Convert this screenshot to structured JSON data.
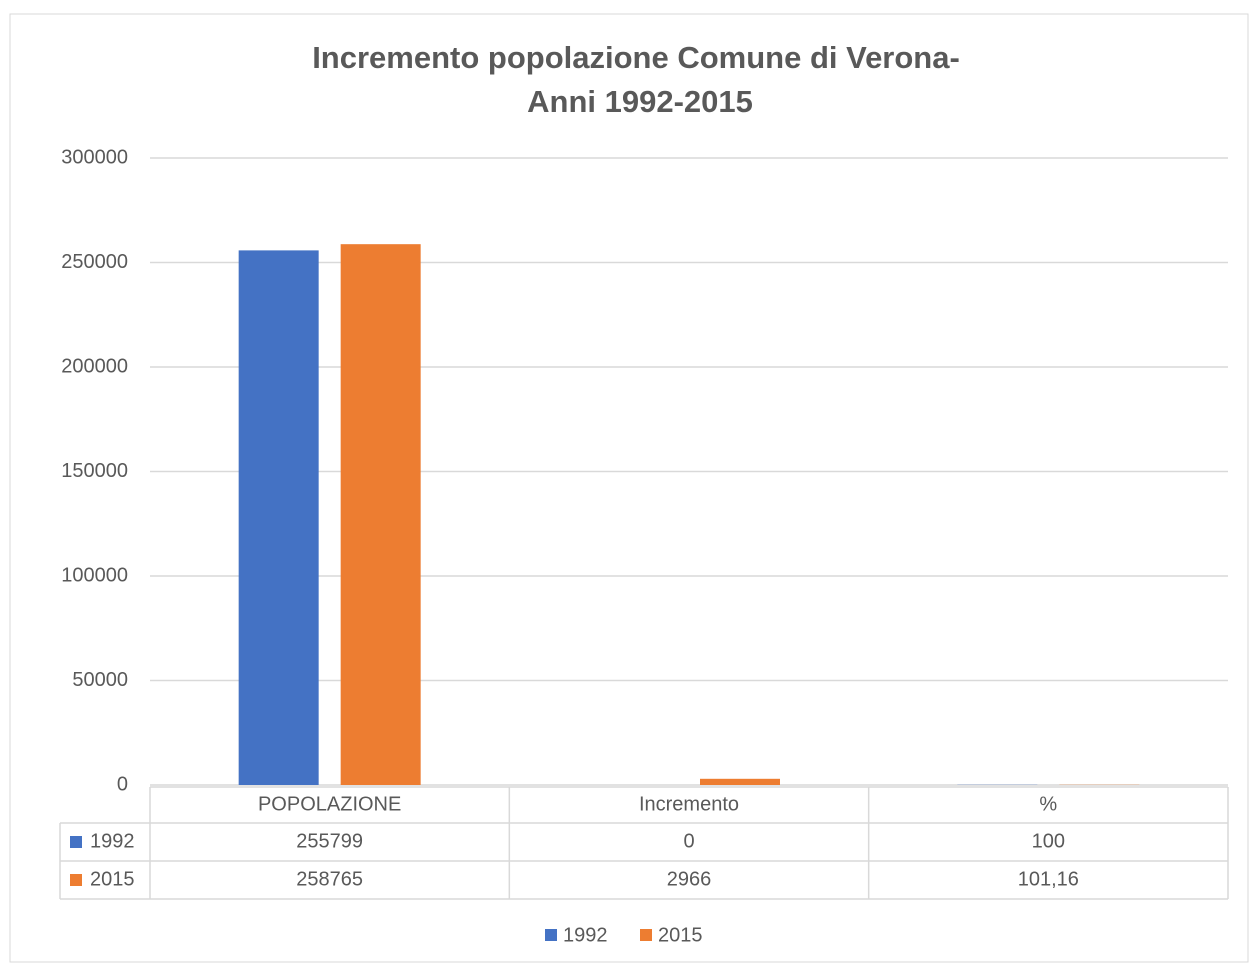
{
  "chart_data": {
    "type": "bar",
    "title": [
      "Incremento popolazione Comune di Verona-",
      "Anni 1992-2015"
    ],
    "categories": [
      "POPOLAZIONE",
      "Incremento",
      "%"
    ],
    "series": [
      {
        "name": "1992",
        "color": "#4472c4",
        "values": [
          255799,
          0,
          100
        ]
      },
      {
        "name": "2015",
        "color": "#ed7d31",
        "values": [
          258765,
          2966,
          101.16
        ],
        "value_labels": [
          "258765",
          "2966",
          "101,16"
        ]
      }
    ],
    "ylim": [
      0,
      300000
    ],
    "yticks": [
      0,
      50000,
      100000,
      150000,
      200000,
      250000,
      300000
    ],
    "grid": true,
    "legend": "bottom",
    "data_table": true
  }
}
